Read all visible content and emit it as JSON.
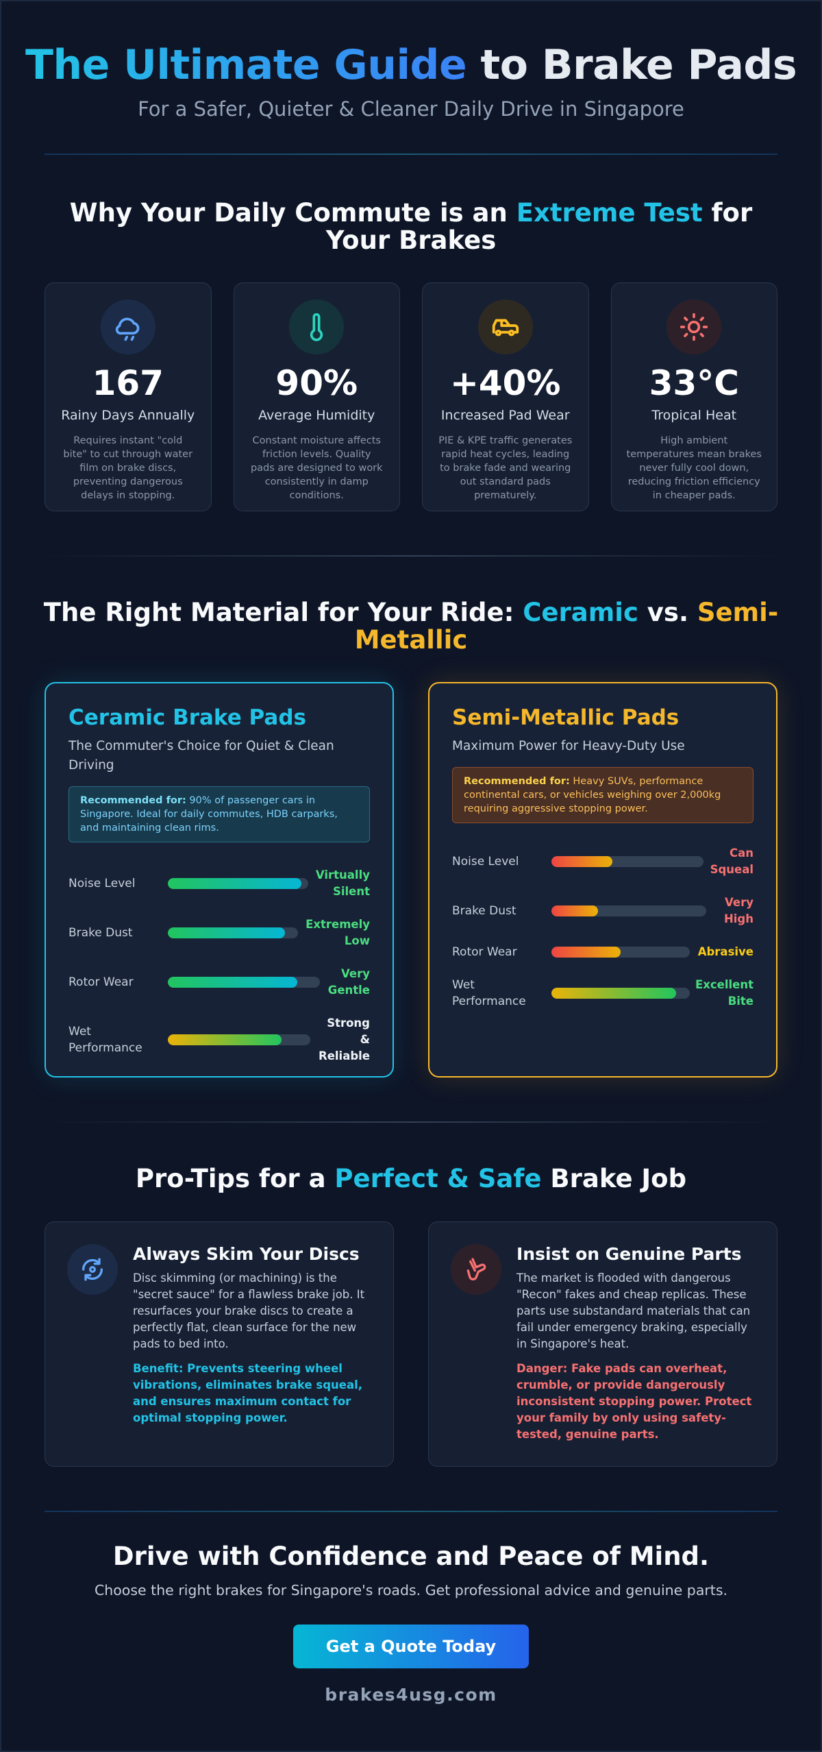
{
  "header": {
    "title_highlight": "The Ultimate Guide",
    "title_rest": " to Brake Pads",
    "subtitle": "For a Safer, Quieter & Cleaner Daily Drive in Singapore"
  },
  "commute": {
    "title_part1": "Why Your Daily Commute is an ",
    "title_highlight": "Extreme Test",
    "title_part2": " for Your Brakes",
    "stats": [
      {
        "icon": "rain-cloud-icon",
        "value": "167",
        "label": "Rainy Days Annually",
        "desc": "Requires instant \"cold bite\" to cut through water film on brake discs, preventing dangerous delays in stopping.",
        "color": "#60a5fa"
      },
      {
        "icon": "thermometer-icon",
        "value": "90%",
        "label": "Average Humidity",
        "desc": "Constant moisture affects friction levels. Quality pads are designed to work consistently in damp conditions.",
        "color": "#2dd4bf"
      },
      {
        "icon": "traffic-car-icon",
        "value": "+40%",
        "label": "Increased Pad Wear",
        "desc": "PIE & KPE traffic generates rapid heat cycles, leading to brake fade and wearing out standard pads prematurely.",
        "color": "#fbbf24"
      },
      {
        "icon": "sun-icon",
        "value": "33°C",
        "label": "Tropical Heat",
        "desc": "High ambient temperatures mean brakes never fully cool down, reducing friction efficiency in cheaper pads.",
        "color": "#f87171"
      }
    ]
  },
  "materials": {
    "title_part1": "The Right Material for Your Ride: ",
    "title_ceramic": "Ceramic",
    "title_vs": " vs. ",
    "title_metal": "Semi-Metallic",
    "ceramic": {
      "title": "Ceramic Brake Pads",
      "subtitle": "The Commuter's Choice for Quiet & Clean Driving",
      "rec_label": "Recommended for:",
      "rec_text": " 90% of passenger cars in Singapore. Ideal for daily commutes, HDB carparks, and maintaining clean rims.",
      "metrics": [
        {
          "label": "Noise Level",
          "value": "Virtually Silent",
          "fill": 0.95
        },
        {
          "label": "Brake Dust",
          "value": "Extremely Low",
          "fill": 0.9
        },
        {
          "label": "Rotor Wear",
          "value": "Very Gentle",
          "fill": 0.85
        },
        {
          "label": "Wet Performance",
          "value": "Strong & Reliable",
          "fill": 0.8
        }
      ]
    },
    "metal": {
      "title": "Semi-Metallic Pads",
      "subtitle": "Maximum Power for Heavy-Duty Use",
      "rec_label": "Recommended for:",
      "rec_text": " Heavy SUVs, performance continental cars, or vehicles weighing over 2,000kg requiring aggressive stopping power.",
      "metrics": [
        {
          "label": "Noise Level",
          "value": "Can Squeal",
          "fill": 0.4
        },
        {
          "label": "Brake Dust",
          "value": "Very High",
          "fill": 0.3
        },
        {
          "label": "Rotor Wear",
          "value": "Abrasive",
          "fill": 0.5
        },
        {
          "label": "Wet Performance",
          "value": "Excellent Bite",
          "fill": 0.9
        }
      ]
    }
  },
  "tips": {
    "title_part1": "Pro-Tips for a ",
    "title_highlight": "Perfect & Safe",
    "title_part2": " Brake Job",
    "skim": {
      "title": "Always Skim Your Discs",
      "text": "Disc skimming (or machining) is the \"secret sauce\" for a flawless brake job. It resurfaces your brake discs to create a perfectly flat, clean surface for the new pads to bed into.",
      "note": "Benefit: Prevents steering wheel vibrations, eliminates brake squeal, and ensures maximum contact for optimal stopping power."
    },
    "genuine": {
      "title": "Insist on Genuine Parts",
      "text": "The market is flooded with dangerous \"Recon\" fakes and cheap replicas. These parts use substandard materials that can fail under emergency braking, especially in Singapore's heat.",
      "note": "Danger: Fake pads can overheat, crumble, or provide dangerously inconsistent stopping power. Protect your family by only using safety-tested, genuine parts."
    }
  },
  "footer": {
    "title": "Drive with Confidence and Peace of Mind.",
    "subtitle": "Choose the right brakes for Singapore's roads. Get professional advice and genuine parts.",
    "cta": "Get a Quote Today",
    "site": "brakes4usg.com"
  },
  "colors": {
    "background": "#0e1527",
    "cyan": "#22c3e6",
    "amber": "#f5b72b",
    "green": "#4ade80",
    "red": "#f87171"
  }
}
